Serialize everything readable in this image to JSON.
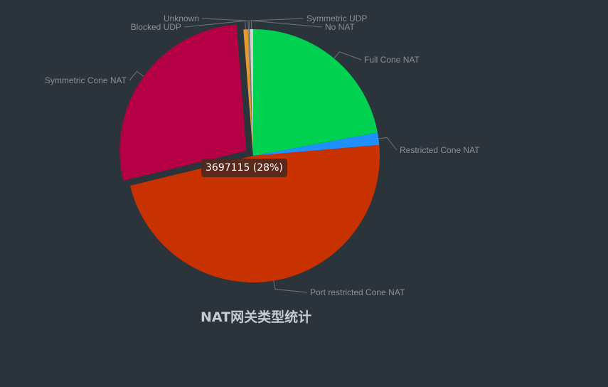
{
  "chart_data": {
    "type": "pie",
    "title": "NAT网关类型统计",
    "series": [
      {
        "name": "Full Cone NAT",
        "value": 2960000,
        "color": "#00d150"
      },
      {
        "name": "Restricted Cone NAT",
        "value": 210000,
        "color": "#1e90ff"
      },
      {
        "name": "Port restricted Cone NAT",
        "value": 6380000,
        "color": "#c83200"
      },
      {
        "name": "Symmetric Cone NAT",
        "value": 3697115,
        "color": "#b50043"
      },
      {
        "name": "Blocked UDP",
        "value": 75000,
        "color": "#e69a2e"
      },
      {
        "name": "Unknown",
        "value": 20000,
        "color": "#8a8a8a"
      },
      {
        "name": "Symmetric UDP",
        "value": 15000,
        "color": "#7a7a6a"
      },
      {
        "name": "No NAT",
        "value": 55000,
        "color": "#d0d0d0"
      }
    ],
    "highlighted": "Symmetric Cone NAT",
    "tooltip": "3697115 (28%)"
  }
}
